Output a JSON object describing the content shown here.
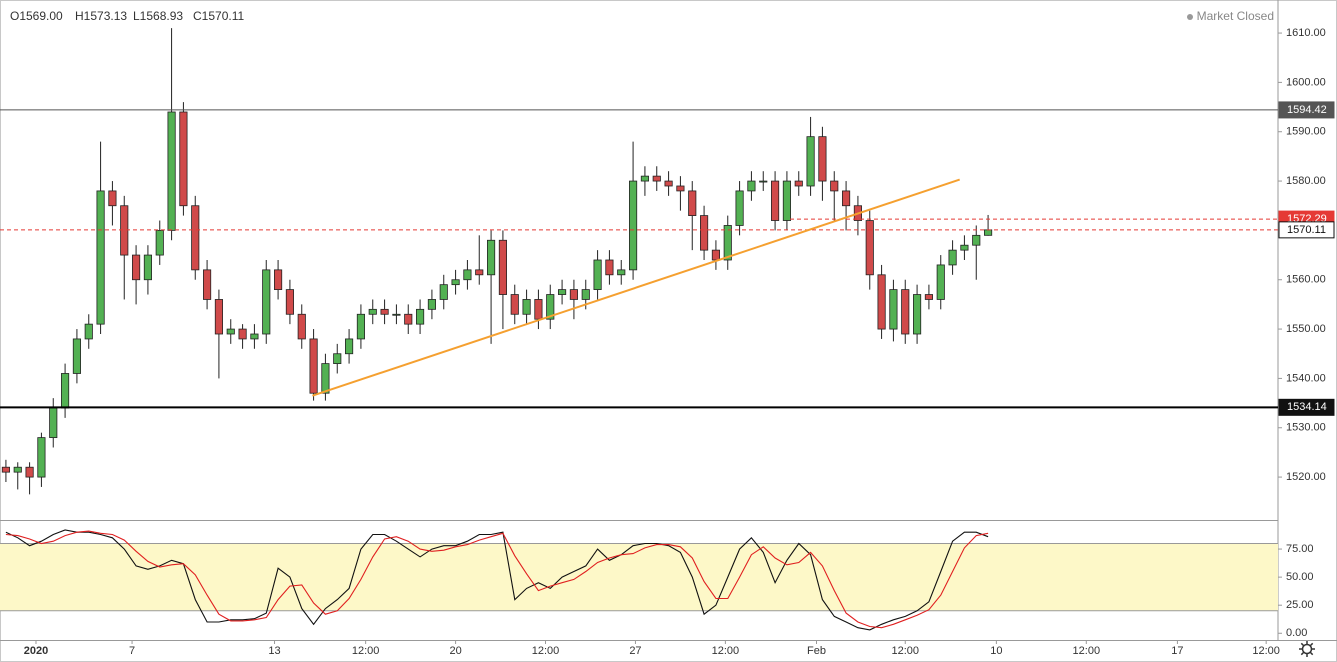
{
  "chart_data": [
    {
      "type": "candlestick",
      "header": {
        "open": "O1569.00",
        "high": "H1573.13",
        "low": "L1568.93",
        "close": "C1570.11"
      },
      "status": "Market Closed",
      "up_color": "#53b153",
      "down_color": "#d04a4a",
      "open": [
        1522,
        1521,
        1522,
        1520,
        1528,
        1534,
        1541,
        1548,
        1551,
        1578,
        1575,
        1565,
        1560,
        1565,
        1570,
        1594,
        1575,
        1562,
        1556,
        1549,
        1550,
        1548,
        1549,
        1562,
        1558,
        1553,
        1548,
        1537,
        1543,
        1545,
        1548,
        1553,
        1554,
        1553,
        1553,
        1551,
        1554,
        1556,
        1559,
        1560,
        1562,
        1561,
        1568,
        1557,
        1553,
        1556,
        1552,
        1557,
        1558,
        1556,
        1558,
        1564,
        1561,
        1562,
        1580,
        1581,
        1580,
        1579,
        1578,
        1573,
        1566,
        1564,
        1571,
        1578,
        1580,
        1580,
        1572,
        1580,
        1579,
        1589,
        1580,
        1578,
        1575,
        1572,
        1561,
        1550,
        1558,
        1549,
        1557,
        1556,
        1563,
        1566,
        1567,
        1569
      ],
      "high": [
        1523.5,
        1523,
        1523,
        1529,
        1536,
        1543,
        1550,
        1553,
        1588,
        1580,
        1577,
        1567,
        1567,
        1572,
        1611,
        1596,
        1577,
        1564,
        1558,
        1552,
        1551,
        1551,
        1564,
        1564,
        1560,
        1555,
        1550,
        1545,
        1547,
        1550,
        1555,
        1556,
        1556,
        1555,
        1555,
        1556,
        1558,
        1561,
        1562,
        1564,
        1569,
        1570,
        1570,
        1559,
        1558,
        1558,
        1559,
        1560,
        1560,
        1560,
        1566,
        1566,
        1564,
        1588,
        1583,
        1583,
        1582,
        1581,
        1580,
        1575,
        1568,
        1573,
        1580,
        1582,
        1582,
        1582,
        1582,
        1582,
        1593,
        1591,
        1582,
        1580,
        1577,
        1574,
        1563,
        1560,
        1560,
        1559,
        1559,
        1565,
        1568,
        1569,
        1571,
        1573.13
      ],
      "low": [
        1519,
        1517.5,
        1516.5,
        1518,
        1526,
        1532,
        1539,
        1546,
        1549,
        1571,
        1556,
        1555,
        1557,
        1563,
        1568,
        1573,
        1560,
        1554,
        1540,
        1547,
        1546,
        1546,
        1547,
        1556,
        1551,
        1546,
        1535.5,
        1535.5,
        1541,
        1543,
        1546,
        1551,
        1551,
        1551,
        1549,
        1549,
        1552,
        1554,
        1557,
        1558,
        1559,
        1547,
        1550,
        1551,
        1551,
        1550,
        1550,
        1555,
        1552,
        1554,
        1556,
        1559,
        1559,
        1560,
        1577,
        1578,
        1577,
        1574,
        1566,
        1564,
        1562,
        1562,
        1569,
        1576,
        1578,
        1570,
        1570,
        1577,
        1577,
        1576,
        1572,
        1570,
        1569,
        1558,
        1548,
        1547.5,
        1547,
        1547,
        1554,
        1554,
        1561,
        1564,
        1560,
        1568.93
      ],
      "close": [
        1521,
        1522,
        1520,
        1528,
        1534,
        1541,
        1548,
        1551,
        1578,
        1575,
        1565,
        1560,
        1565,
        1570,
        1594,
        1575,
        1562,
        1556,
        1549,
        1550,
        1548,
        1549,
        1562,
        1558,
        1553,
        1548,
        1537,
        1543,
        1545,
        1548,
        1553,
        1554,
        1553,
        1553,
        1551,
        1554,
        1556,
        1559,
        1560,
        1562,
        1561,
        1568,
        1557,
        1553,
        1556,
        1552,
        1557,
        1558,
        1556,
        1558,
        1564,
        1561,
        1562,
        1580,
        1581,
        1580,
        1579,
        1578,
        1573,
        1566,
        1564,
        1571,
        1578,
        1580,
        1580,
        1572,
        1580,
        1579,
        1589,
        1580,
        1578,
        1575,
        1572,
        1561,
        1550,
        1558,
        1549,
        1557,
        1556,
        1563,
        1566,
        1567,
        1569,
        1570.11
      ],
      "xlim": [
        0,
        108
      ],
      "ylim": [
        1511.3,
        1616.7
      ],
      "yticks": [
        {
          "value": 1520,
          "label": "1520.00"
        },
        {
          "value": 1530,
          "label": "1530.00"
        },
        {
          "value": 1540,
          "label": "1540.00"
        },
        {
          "value": 1550,
          "label": "1550.00"
        },
        {
          "value": 1560,
          "label": "1560.00"
        },
        {
          "value": 1570,
          "label": "1570.00"
        },
        {
          "value": 1580,
          "label": "1580.00"
        },
        {
          "value": 1590,
          "label": "1590.00"
        },
        {
          "value": 1600,
          "label": "1600.00"
        },
        {
          "value": 1610,
          "label": "1610.00"
        }
      ],
      "levels": [
        {
          "value": 1594.42,
          "color": "#555555",
          "style": "solid"
        },
        {
          "value": 1534.14,
          "color": "#000000",
          "style": "bold"
        },
        {
          "value": 1572.29,
          "color": "#e53935",
          "style": "dashed-partial"
        },
        {
          "value": 1570.11,
          "color": "#e53935",
          "style": "dashed"
        }
      ],
      "trendline": {
        "color": "#f5a030",
        "points": [
          [
            26.4,
            1536.5
          ],
          [
            81.1,
            1580.3
          ]
        ]
      }
    },
    {
      "type": "line",
      "ylim": [
        -6,
        100
      ],
      "yticks": [
        {
          "value": 0,
          "label": "0.00"
        },
        {
          "value": 25,
          "label": "25.00"
        },
        {
          "value": 50,
          "label": "50.00"
        },
        {
          "value": 75,
          "label": "75.00"
        }
      ],
      "band": [
        20,
        80
      ],
      "band_color": "#fdf8c8",
      "series": [
        {
          "color": "#111111",
          "values": [
            90,
            85,
            78,
            82,
            88,
            92,
            90,
            90,
            88,
            85,
            75,
            60,
            57,
            60,
            65,
            62,
            30,
            10,
            10,
            12,
            12,
            13,
            18,
            58,
            50,
            22,
            8,
            22,
            30,
            40,
            75,
            88,
            88,
            82,
            75,
            68,
            75,
            78,
            78,
            82,
            88,
            88,
            90,
            30,
            40,
            45,
            40,
            50,
            55,
            60,
            75,
            65,
            70,
            78,
            80,
            80,
            78,
            72,
            50,
            17,
            25,
            50,
            75,
            85,
            72,
            45,
            65,
            80,
            70,
            30,
            15,
            10,
            5,
            3,
            8,
            12,
            15,
            20,
            28,
            55,
            82,
            90,
            90,
            86
          ]
        },
        {
          "color": "#e02020",
          "values": [
            88,
            87,
            84,
            80,
            82,
            87,
            90,
            91,
            89,
            88,
            83,
            73,
            64,
            59,
            61,
            62,
            52,
            34,
            17,
            11,
            11,
            12,
            14,
            30,
            42,
            43,
            27,
            17,
            20,
            31,
            48,
            68,
            84,
            86,
            82,
            75,
            73,
            74,
            77,
            79,
            83,
            86,
            89,
            69,
            53,
            38,
            42,
            45,
            48,
            55,
            63,
            67,
            70,
            71,
            76,
            79,
            79,
            77,
            67,
            46,
            31,
            31,
            50,
            70,
            77,
            67,
            61,
            63,
            72,
            60,
            38,
            18,
            10,
            6,
            5,
            8,
            12,
            16,
            21,
            34,
            55,
            76,
            87,
            89
          ]
        }
      ],
      "xticks": [
        {
          "value": 3.04,
          "label": "2020"
        },
        {
          "value": 11.16,
          "label": "7"
        },
        {
          "value": 23.2,
          "label": "13"
        },
        {
          "value": 30.9,
          "label": "12:00"
        },
        {
          "value": 38.5,
          "label": "20"
        },
        {
          "value": 46.1,
          "label": "12:00"
        },
        {
          "value": 53.7,
          "label": "27"
        },
        {
          "value": 61.3,
          "label": "12:00"
        },
        {
          "value": 69.0,
          "label": "Feb"
        },
        {
          "value": 76.5,
          "label": "12:00"
        },
        {
          "value": 84.2,
          "label": "10"
        },
        {
          "value": 91.8,
          "label": "12:00"
        },
        {
          "value": 99.5,
          "label": "17"
        },
        {
          "value": 107.0,
          "label": "12:00"
        }
      ]
    }
  ]
}
